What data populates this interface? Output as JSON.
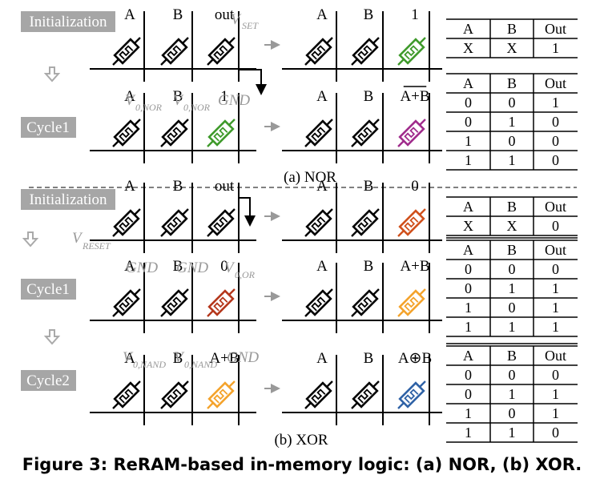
{
  "steps": {
    "initialization": "Initialization",
    "cycle1": "Cycle1",
    "cycle2": "Cycle2"
  },
  "labels": {
    "A": "A",
    "B": "B",
    "out": "out",
    "one": "1",
    "zero": "0",
    "nor_expr": "A+B",
    "or_expr": "A+B",
    "xor_expr": "A⊕B"
  },
  "voltages": {
    "v": "V",
    "set_sub": "SET",
    "reset_sub": "RESET",
    "nor_sub": "0,NOR",
    "or_sub": "0,OR",
    "nand_sub": "0,NAND",
    "gnd": "GND"
  },
  "captions": {
    "nor": "(a) NOR",
    "xor": "(b) XOR",
    "figure": "Figure 3: ReRAM-based in-memory logic: (a) NOR, (b) XOR."
  },
  "colors": {
    "nor_init_out": "#3f9a2b",
    "nor_result": "#a02c8c",
    "xor_init_out": "#d0501c",
    "or_input_zero": "#b5371c",
    "or_result": "#f4a32c",
    "xor_result": "#2f62a6",
    "highlight_text": "#d0401c",
    "step_box": "#a6a6a6",
    "voltage_text": "#999999"
  },
  "tables": {
    "header": [
      "A",
      "B",
      "Out"
    ],
    "nor_init": [
      [
        "X",
        "X",
        "1"
      ]
    ],
    "nor_cycle1": [
      [
        "0",
        "0",
        "1"
      ],
      [
        "0",
        "1",
        "0"
      ],
      [
        "1",
        "0",
        "0"
      ],
      [
        "1",
        "1",
        "0"
      ]
    ],
    "xor_init": [
      [
        "X",
        "X",
        "0"
      ]
    ],
    "xor_cycle1": [
      [
        "0",
        "0",
        "0"
      ],
      [
        "0",
        "1",
        "1"
      ],
      [
        "1",
        "0",
        "1"
      ],
      [
        "1",
        "1",
        "1"
      ]
    ],
    "xor_cycle2": [
      [
        "0",
        "0",
        "0"
      ],
      [
        "0",
        "1",
        "1"
      ],
      [
        "1",
        "0",
        "1"
      ],
      [
        "1",
        "1",
        "0"
      ]
    ]
  }
}
